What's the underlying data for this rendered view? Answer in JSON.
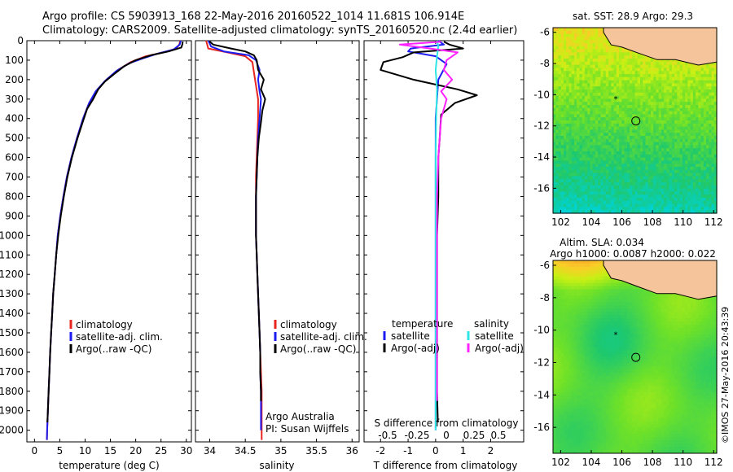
{
  "header": {
    "line1": "Argo profile: CS 5903913_168 22-May-2016 20160522_1014 11.681S 106.914E",
    "line2": "Climatology: CARS2009. Satellite-adjusted climatology: synTS_20160520.nc (2.4d earlier)"
  },
  "footer_right": "©IMOS 27-May-2016 20:43:39",
  "colors": {
    "climatology": "#e8251e",
    "satellite": "#1c1cf0",
    "argo": "#000000",
    "sat_salinity": "#2ee6e6",
    "argo_salinity": "#ff22ff",
    "land": "#f5c49a"
  },
  "chart_data": [
    {
      "type": "line",
      "xlabel": "temperature (deg C)",
      "ylabel": "",
      "xlim": [
        -1.5,
        31
      ],
      "ylim": [
        2060,
        0
      ],
      "xticks": [
        "0",
        "5",
        "10",
        "15",
        "20",
        "25",
        "30"
      ],
      "yticks": [
        "0",
        "100",
        "200",
        "300",
        "400",
        "500",
        "600",
        "700",
        "800",
        "900",
        "1000",
        "1100",
        "1200",
        "1300",
        "1400",
        "1500",
        "1600",
        "1700",
        "1800",
        "1900",
        "2000"
      ],
      "legend": [
        "climatology",
        "satellite-adj. clim.",
        "Argo(..raw -QC)"
      ],
      "series": [
        {
          "name": "climatology",
          "color": "#e8251e",
          "points": [
            [
              28.8,
              0
            ],
            [
              28.6,
              20
            ],
            [
              28.0,
              40
            ],
            [
              25.5,
              60
            ],
            [
              22.0,
              80
            ],
            [
              19.0,
              110
            ],
            [
              16.5,
              150
            ],
            [
              14.2,
              200
            ],
            [
              12.2,
              260
            ],
            [
              10.8,
              320
            ],
            [
              9.6,
              400
            ],
            [
              8.4,
              500
            ],
            [
              7.3,
              600
            ],
            [
              6.4,
              700
            ],
            [
              5.7,
              800
            ],
            [
              5.1,
              900
            ],
            [
              4.6,
              1000
            ],
            [
              4.3,
              1100
            ],
            [
              4.0,
              1200
            ],
            [
              3.7,
              1300
            ],
            [
              3.5,
              1400
            ],
            [
              3.3,
              1500
            ],
            [
              3.1,
              1600
            ],
            [
              2.95,
              1700
            ],
            [
              2.8,
              1800
            ],
            [
              2.65,
              1900
            ],
            [
              2.5,
              2000
            ],
            [
              2.45,
              2050
            ]
          ]
        },
        {
          "name": "satellite-adj. clim.",
          "color": "#1c1cf0",
          "points": [
            [
              28.9,
              0
            ],
            [
              28.7,
              20
            ],
            [
              27.5,
              45
            ],
            [
              24.5,
              65
            ],
            [
              21.5,
              90
            ],
            [
              18.8,
              115
            ],
            [
              16.2,
              155
            ],
            [
              14.0,
              205
            ],
            [
              12.1,
              260
            ],
            [
              10.8,
              320
            ],
            [
              9.6,
              400
            ],
            [
              8.4,
              500
            ],
            [
              7.3,
              600
            ],
            [
              6.4,
              700
            ],
            [
              5.7,
              800
            ],
            [
              5.1,
              900
            ],
            [
              4.6,
              1000
            ],
            [
              4.3,
              1100
            ],
            [
              4.0,
              1200
            ],
            [
              3.7,
              1300
            ],
            [
              3.5,
              1400
            ],
            [
              3.3,
              1500
            ],
            [
              3.1,
              1600
            ],
            [
              2.95,
              1700
            ],
            [
              2.8,
              1800
            ],
            [
              2.65,
              1900
            ],
            [
              2.5,
              2000
            ],
            [
              2.45,
              2050
            ]
          ]
        },
        {
          "name": "Argo(..raw -QC)",
          "color": "#000000",
          "points": [
            [
              29.3,
              5
            ],
            [
              29.2,
              20
            ],
            [
              29.0,
              35
            ],
            [
              26.5,
              55
            ],
            [
              23.0,
              75
            ],
            [
              20.0,
              100
            ],
            [
              17.8,
              130
            ],
            [
              15.8,
              170
            ],
            [
              13.9,
              210
            ],
            [
              12.6,
              250
            ],
            [
              11.6,
              300
            ],
            [
              10.4,
              350
            ],
            [
              9.5,
              420
            ],
            [
              8.5,
              500
            ],
            [
              7.4,
              600
            ],
            [
              6.5,
              700
            ],
            [
              5.8,
              800
            ],
            [
              5.2,
              900
            ],
            [
              4.7,
              1000
            ],
            [
              4.3,
              1100
            ],
            [
              4.0,
              1200
            ],
            [
              3.7,
              1300
            ],
            [
              3.5,
              1400
            ],
            [
              3.3,
              1500
            ],
            [
              3.1,
              1600
            ],
            [
              2.95,
              1700
            ],
            [
              2.8,
              1800
            ],
            [
              2.65,
              1900
            ],
            [
              2.55,
              1960
            ]
          ]
        }
      ]
    },
    {
      "type": "line",
      "xlabel": "salinity",
      "ylabel": "",
      "xlim": [
        33.8,
        36.1
      ],
      "ylim": [
        2060,
        0
      ],
      "xticks": [
        "34",
        "34.5",
        "35",
        "35.5",
        "36"
      ],
      "legend": [
        "climatology",
        "satellite-adj. clim.",
        "Argo(..raw -QC)"
      ],
      "annotations": [
        "Argo Australia",
        "PI: Susan Wijffels"
      ],
      "series": [
        {
          "name": "climatology",
          "color": "#e8251e",
          "points": [
            [
              33.95,
              0
            ],
            [
              33.98,
              40
            ],
            [
              34.25,
              60
            ],
            [
              34.5,
              80
            ],
            [
              34.6,
              110
            ],
            [
              34.62,
              160
            ],
            [
              34.65,
              230
            ],
            [
              34.68,
              300
            ],
            [
              34.68,
              400
            ],
            [
              34.67,
              500
            ],
            [
              34.66,
              600
            ],
            [
              34.65,
              700
            ],
            [
              34.65,
              800
            ],
            [
              34.65,
              900
            ],
            [
              34.65,
              1000
            ],
            [
              34.66,
              1100
            ],
            [
              34.67,
              1200
            ],
            [
              34.68,
              1300
            ],
            [
              34.69,
              1400
            ],
            [
              34.7,
              1500
            ],
            [
              34.71,
              1600
            ],
            [
              34.72,
              1700
            ],
            [
              34.73,
              1800
            ],
            [
              34.73,
              1900
            ],
            [
              34.73,
              2000
            ],
            [
              34.73,
              2050
            ]
          ]
        },
        {
          "name": "satellite-adj. clim.",
          "color": "#1c1cf0",
          "points": [
            [
              33.98,
              0
            ],
            [
              34.02,
              30
            ],
            [
              34.2,
              55
            ],
            [
              34.55,
              75
            ],
            [
              34.65,
              100
            ],
            [
              34.7,
              150
            ],
            [
              34.68,
              200
            ],
            [
              34.7,
              260
            ],
            [
              34.72,
              300
            ],
            [
              34.7,
              400
            ],
            [
              34.68,
              500
            ],
            [
              34.67,
              600
            ],
            [
              34.66,
              700
            ],
            [
              34.65,
              800
            ],
            [
              34.65,
              900
            ],
            [
              34.65,
              1000
            ],
            [
              34.66,
              1100
            ],
            [
              34.67,
              1200
            ],
            [
              34.68,
              1300
            ],
            [
              34.69,
              1400
            ],
            [
              34.7,
              1500
            ],
            [
              34.71,
              1600
            ],
            [
              34.71,
              1700
            ],
            [
              34.72,
              1800
            ],
            [
              34.72,
              1900
            ],
            [
              34.72,
              2000
            ]
          ]
        },
        {
          "name": "Argo(..raw -QC)",
          "color": "#000000",
          "points": [
            [
              34.0,
              5
            ],
            [
              34.05,
              20
            ],
            [
              34.3,
              40
            ],
            [
              34.5,
              55
            ],
            [
              34.62,
              75
            ],
            [
              34.66,
              100
            ],
            [
              34.68,
              150
            ],
            [
              34.76,
              200
            ],
            [
              34.72,
              250
            ],
            [
              34.78,
              300
            ],
            [
              34.74,
              360
            ],
            [
              34.72,
              420
            ],
            [
              34.69,
              500
            ],
            [
              34.67,
              600
            ],
            [
              34.66,
              700
            ],
            [
              34.65,
              800
            ],
            [
              34.65,
              900
            ],
            [
              34.65,
              1000
            ],
            [
              34.66,
              1100
            ],
            [
              34.67,
              1200
            ],
            [
              34.68,
              1300
            ],
            [
              34.69,
              1400
            ],
            [
              34.7,
              1500
            ],
            [
              34.71,
              1600
            ],
            [
              34.71,
              1700
            ],
            [
              34.72,
              1800
            ],
            [
              34.72,
              1850
            ]
          ]
        }
      ]
    },
    {
      "type": "line",
      "xlabel": "T difference from climatology",
      "xlabel2": "S difference from climatology",
      "xlim": [
        -2.6,
        3.2
      ],
      "ylim": [
        2060,
        0
      ],
      "xticks": [
        "-2",
        "-1",
        "0",
        "1",
        "2"
      ],
      "xticks2": [
        "-0.5",
        "-0.25",
        "0",
        "0.25",
        "0.5"
      ],
      "legend_titles": [
        "temperature",
        "salinity"
      ],
      "legend": [
        "satellite",
        "Argo(-adj)",
        "satellite",
        "Argo(-adj)"
      ],
      "series": [
        {
          "name": "temperature satellite",
          "color": "#1c1cf0",
          "points": [
            [
              0.1,
              0
            ],
            [
              0.3,
              20
            ],
            [
              -0.9,
              40
            ],
            [
              -1.0,
              55
            ],
            [
              0.0,
              80
            ],
            [
              0.4,
              120
            ],
            [
              0.1,
              200
            ],
            [
              0.0,
              400
            ],
            [
              0.0,
              800
            ],
            [
              0.0,
              1200
            ],
            [
              0.0,
              1600
            ],
            [
              0.0,
              2000
            ]
          ]
        },
        {
          "name": "temperature Argo(-adj)",
          "color": "#000000",
          "points": [
            [
              0.3,
              5
            ],
            [
              0.5,
              20
            ],
            [
              1.0,
              40
            ],
            [
              -0.8,
              60
            ],
            [
              -1.2,
              85
            ],
            [
              -1.9,
              110
            ],
            [
              -2.0,
              150
            ],
            [
              -0.8,
              200
            ],
            [
              0.8,
              250
            ],
            [
              1.5,
              280
            ],
            [
              0.7,
              320
            ],
            [
              0.2,
              380
            ],
            [
              0.15,
              500
            ],
            [
              0.1,
              600
            ],
            [
              0.1,
              800
            ],
            [
              0.05,
              1000
            ],
            [
              0.05,
              1200
            ],
            [
              0.05,
              1400
            ],
            [
              0.05,
              1600
            ],
            [
              0.05,
              1800
            ],
            [
              0.08,
              1960
            ]
          ]
        },
        {
          "name": "salinity satellite",
          "color": "#2ee6e6",
          "points": [
            [
              0.05,
              0
            ],
            [
              0.1,
              30
            ],
            [
              0.05,
              80
            ],
            [
              0.0,
              150
            ],
            [
              0.05,
              250
            ],
            [
              0.02,
              400
            ],
            [
              0.0,
              600
            ],
            [
              0.0,
              1000
            ],
            [
              0.0,
              1400
            ],
            [
              0.0,
              1800
            ],
            [
              0.0,
              2000
            ]
          ]
        },
        {
          "name": "salinity Argo(-adj)",
          "color": "#ff22ff",
          "points": [
            [
              0.2,
              5
            ],
            [
              -1.3,
              20
            ],
            [
              -0.2,
              40
            ],
            [
              0.8,
              60
            ],
            [
              0.4,
              100
            ],
            [
              0.3,
              150
            ],
            [
              0.6,
              200
            ],
            [
              0.2,
              260
            ],
            [
              0.4,
              300
            ],
            [
              0.2,
              400
            ],
            [
              0.1,
              600
            ],
            [
              0.05,
              800
            ],
            [
              0.05,
              1200
            ],
            [
              0.05,
              1600
            ],
            [
              0.05,
              1850
            ]
          ]
        }
      ]
    },
    {
      "type": "heatmap",
      "title": "sat. SST: 28.9 Argo: 29.3",
      "xticks": [
        "102",
        "104",
        "106",
        "108",
        "110",
        "112"
      ],
      "yticks": [
        "-6",
        "-8",
        "-10",
        "-12",
        "-14",
        "-16"
      ],
      "xlim": [
        101.5,
        112.2
      ],
      "ylim": [
        -17.6,
        -5.7
      ],
      "argo_position": [
        106.914,
        -11.681
      ],
      "previous_position": [
        105.6,
        -10.3
      ]
    },
    {
      "type": "heatmap",
      "title": "Altim. SLA: 0.034",
      "subtitle": "Argo h1000: 0.0087 h2000: 0.022",
      "xticks": [
        "102",
        "104",
        "106",
        "108",
        "110",
        "112"
      ],
      "yticks": [
        "-6",
        "-8",
        "-10",
        "-12",
        "-14",
        "-16"
      ],
      "xlim": [
        101.5,
        112.2
      ],
      "ylim": [
        -17.6,
        -5.7
      ],
      "argo_position": [
        106.914,
        -11.681
      ],
      "previous_position": [
        105.6,
        -10.3
      ]
    }
  ]
}
